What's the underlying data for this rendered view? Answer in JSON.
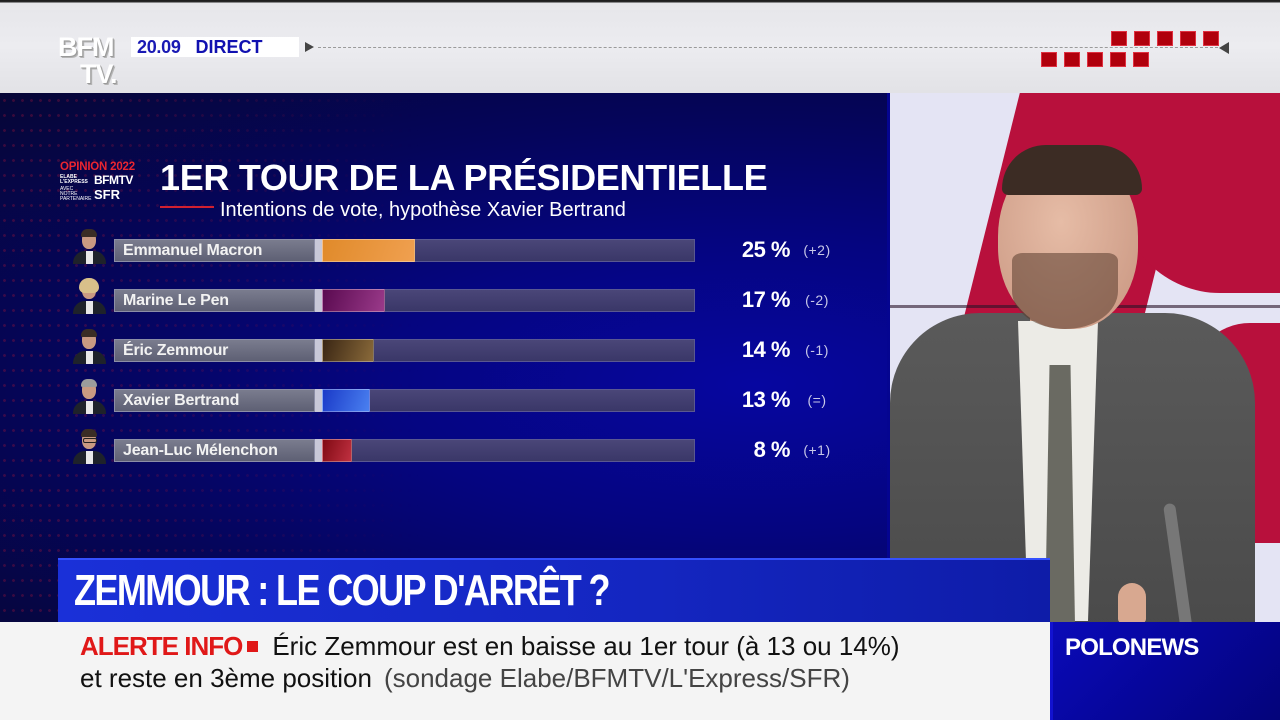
{
  "channel": {
    "logo_line1": "BFM",
    "logo_line2": "TV.",
    "time": "20.09",
    "live_label": "DIRECT"
  },
  "graphic": {
    "badge": {
      "title": "OPINION 2022",
      "partners_small": "ELABE L'EXPRESS",
      "bfmtv": "BFMTV",
      "avec": "AVEC NOTRE PARTENAIRE",
      "sfr": "SFR"
    },
    "title": "1ER TOUR DE LA PRÉSIDENTIELLE",
    "subtitle": "Intentions de vote, hypothèse Xavier Bertrand"
  },
  "chart_data": {
    "type": "bar",
    "orientation": "horizontal",
    "title": "1ER TOUR DE LA PRÉSIDENTIELLE",
    "subtitle": "Intentions de vote, hypothèse Xavier Bertrand",
    "categories": [
      "Emmanuel Macron",
      "Marine Le Pen",
      "Éric Zemmour",
      "Xavier Bertrand",
      "Jean-Luc Mélenchon"
    ],
    "values": [
      25,
      17,
      14,
      13,
      8
    ],
    "value_labels": [
      "25 %",
      "17 %",
      "14 %",
      "13 %",
      "8 %"
    ],
    "changes": [
      "(+2)",
      "(-2)",
      "(-1)",
      "(=)",
      "(+1)"
    ],
    "colors": [
      "#e08a2a",
      "#7a1a6a",
      "#5a3e1e",
      "#2a5ad8",
      "#a01820"
    ],
    "unit": "%",
    "xlim": [
      0,
      100
    ],
    "grid": false,
    "legend": "none"
  },
  "rows": [
    {
      "name": "Emmanuel Macron",
      "pct": "25 %",
      "delta": "(+2)",
      "value": 25,
      "color": "#e08a2a",
      "color2": "#f0a050"
    },
    {
      "name": "Marine Le Pen",
      "pct": "17 %",
      "delta": "(-2)",
      "value": 17,
      "color": "#5a0a50",
      "color2": "#9a3a8a"
    },
    {
      "name": "Éric Zemmour",
      "pct": "14 %",
      "delta": "(-1)",
      "value": 14,
      "color": "#3a2614",
      "color2": "#8a6a3a"
    },
    {
      "name": "Xavier Bertrand",
      "pct": "13 %",
      "delta": "(=)",
      "value": 13,
      "color": "#1a3ac8",
      "color2": "#4a80f0"
    },
    {
      "name": "Jean-Luc Mélenchon",
      "pct": "8 %",
      "delta": "(+1)",
      "value": 8,
      "color": "#800a14",
      "color2": "#c03040"
    }
  ],
  "headline": "ZEMMOUR : LE COUP D'ARRÊT ?",
  "ticker": {
    "alert_label": "ALERTE INFO",
    "line1": "Éric Zemmour est en baisse au 1er tour (à 13 ou 14%)",
    "line2": "et reste en 3ème position",
    "source": "(sondage Elabe/BFMTV/L'Express/SFR)"
  },
  "program": "POLONEWS",
  "colors": {
    "brand_blue": "#1426c0",
    "alert_red": "#e01818",
    "panel_navy": "#05055a"
  }
}
